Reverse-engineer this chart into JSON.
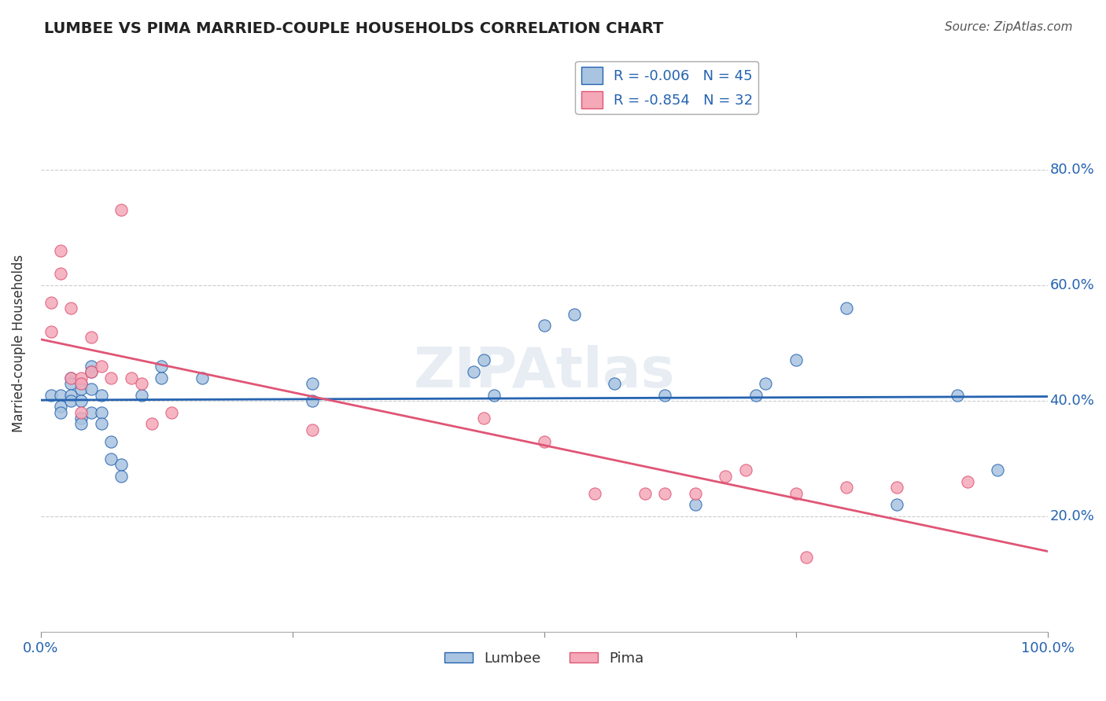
{
  "title": "LUMBEE VS PIMA MARRIED-COUPLE HOUSEHOLDS CORRELATION CHART",
  "source": "Source: ZipAtlas.com",
  "ylabel": "Married-couple Households",
  "R_lumbee": -0.006,
  "N_lumbee": 45,
  "R_pima": -0.854,
  "N_pima": 32,
  "lumbee_color": "#a8c4e0",
  "pima_color": "#f4a8b8",
  "lumbee_line_color": "#2563b0",
  "pima_line_color": "#e05575",
  "lumbee_x": [
    0.01,
    0.02,
    0.02,
    0.02,
    0.03,
    0.03,
    0.03,
    0.03,
    0.04,
    0.04,
    0.04,
    0.04,
    0.04,
    0.05,
    0.05,
    0.05,
    0.05,
    0.06,
    0.06,
    0.06,
    0.07,
    0.07,
    0.08,
    0.08,
    0.1,
    0.12,
    0.12,
    0.16,
    0.27,
    0.27,
    0.43,
    0.44,
    0.45,
    0.5,
    0.53,
    0.57,
    0.62,
    0.65,
    0.71,
    0.72,
    0.75,
    0.8,
    0.85,
    0.91,
    0.95
  ],
  "lumbee_y": [
    0.41,
    0.41,
    0.39,
    0.38,
    0.44,
    0.43,
    0.41,
    0.4,
    0.43,
    0.42,
    0.4,
    0.37,
    0.36,
    0.46,
    0.45,
    0.42,
    0.38,
    0.41,
    0.38,
    0.36,
    0.33,
    0.3,
    0.29,
    0.27,
    0.41,
    0.46,
    0.44,
    0.44,
    0.43,
    0.4,
    0.45,
    0.47,
    0.41,
    0.53,
    0.55,
    0.43,
    0.41,
    0.22,
    0.41,
    0.43,
    0.47,
    0.56,
    0.22,
    0.41,
    0.28
  ],
  "pima_x": [
    0.01,
    0.01,
    0.02,
    0.02,
    0.03,
    0.03,
    0.04,
    0.04,
    0.04,
    0.05,
    0.05,
    0.06,
    0.07,
    0.08,
    0.09,
    0.1,
    0.11,
    0.13,
    0.27,
    0.44,
    0.5,
    0.55,
    0.6,
    0.62,
    0.65,
    0.68,
    0.7,
    0.75,
    0.76,
    0.8,
    0.85,
    0.92
  ],
  "pima_y": [
    0.57,
    0.52,
    0.66,
    0.62,
    0.56,
    0.44,
    0.44,
    0.43,
    0.38,
    0.51,
    0.45,
    0.46,
    0.44,
    0.73,
    0.44,
    0.43,
    0.36,
    0.38,
    0.35,
    0.37,
    0.33,
    0.24,
    0.24,
    0.24,
    0.24,
    0.27,
    0.28,
    0.24,
    0.13,
    0.25,
    0.25,
    0.26
  ],
  "background_color": "#ffffff",
  "grid_color": "#cccccc",
  "ytick_vals": [
    0.2,
    0.4,
    0.6,
    0.8
  ],
  "ytick_labels": [
    "20.0%",
    "40.0%",
    "60.0%",
    "80.0%"
  ],
  "xtick_vals": [
    0.0,
    0.25,
    0.5,
    0.75,
    1.0
  ],
  "xtick_labels": [
    "0.0%",
    "",
    "",
    "",
    "100.0%"
  ]
}
